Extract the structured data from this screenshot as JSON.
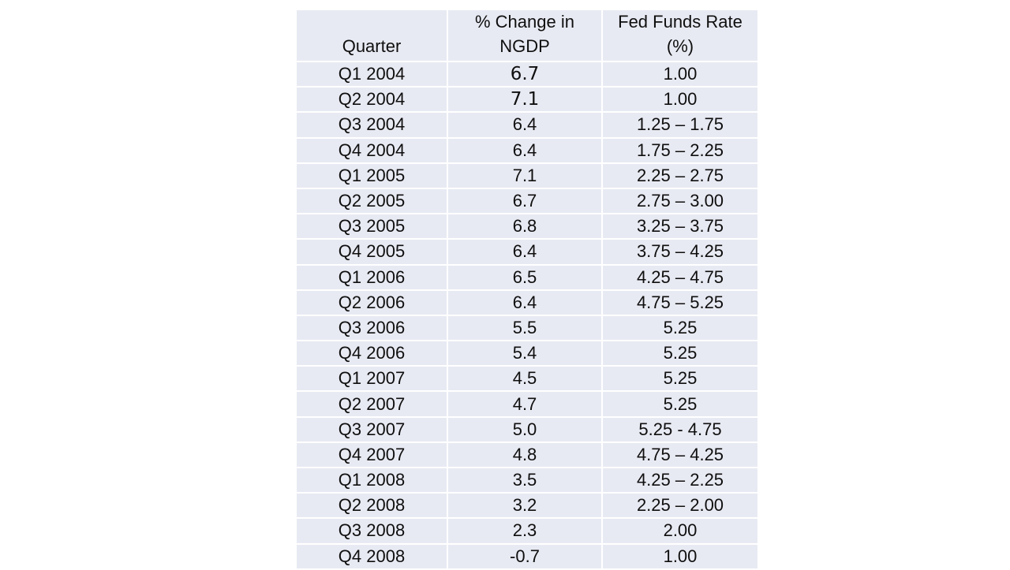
{
  "page": {
    "background": "#FFFFFF"
  },
  "table": {
    "style": {
      "cell_fill": "#E8EAF3",
      "grid_line": "#FFFFFF",
      "text_color": "#0F0F0F"
    },
    "header": [
      {
        "lines": [
          "Quarter"
        ]
      },
      {
        "lines": [
          "% Change in",
          "NGDP"
        ]
      },
      {
        "lines": [
          "Fed Funds Rate",
          "(%)"
        ]
      }
    ],
    "rows": [
      [
        "Q1 2004",
        "6.7",
        "1.00"
      ],
      [
        "Q2 2004",
        "7.1",
        "1.00"
      ],
      [
        "Q3 2004",
        "6.4",
        "1.25 – 1.75"
      ],
      [
        "Q4 2004",
        "6.4",
        "1.75 – 2.25"
      ],
      [
        "Q1 2005",
        "7.1",
        "2.25 – 2.75"
      ],
      [
        "Q2 2005",
        "6.7",
        "2.75 – 3.00"
      ],
      [
        "Q3 2005",
        "6.8",
        "3.25 – 3.75"
      ],
      [
        "Q4 2005",
        "6.4",
        "3.75 – 4.25"
      ],
      [
        "Q1 2006",
        "6.5",
        "4.25 – 4.75"
      ],
      [
        "Q2 2006",
        "6.4",
        "4.75 – 5.25"
      ],
      [
        "Q3 2006",
        "5.5",
        "5.25"
      ],
      [
        "Q4 2006",
        "5.4",
        "5.25"
      ],
      [
        "Q1 2007",
        "4.5",
        "5.25"
      ],
      [
        "Q2 2007",
        "4.7",
        "5.25"
      ],
      [
        "Q3 2007",
        "5.0",
        "5.25 - 4.75"
      ],
      [
        "Q4 2007",
        "4.8",
        "4.75 – 4.25"
      ],
      [
        "Q1 2008",
        "3.5",
        "4.25 – 2.25"
      ],
      [
        "Q2 2008",
        "3.2",
        "2.25 – 2.00"
      ],
      [
        "Q3 2008",
        "2.3",
        "2.00"
      ],
      [
        "Q4 2008",
        "-0.7",
        "1.00"
      ]
    ]
  },
  "chart_data": {
    "type": "table",
    "title": "",
    "columns": [
      "Quarter",
      "% Change in NGDP",
      "Fed Funds Rate (%)"
    ],
    "quarters": [
      "Q1 2004",
      "Q2 2004",
      "Q3 2004",
      "Q4 2004",
      "Q1 2005",
      "Q2 2005",
      "Q3 2005",
      "Q4 2005",
      "Q1 2006",
      "Q2 2006",
      "Q3 2006",
      "Q4 2006",
      "Q1 2007",
      "Q2 2007",
      "Q3 2007",
      "Q4 2007",
      "Q1 2008",
      "Q2 2008",
      "Q3 2008",
      "Q4 2008"
    ],
    "ngdp_pct_change": [
      6.7,
      7.1,
      6.4,
      6.4,
      7.1,
      6.7,
      6.8,
      6.4,
      6.5,
      6.4,
      5.5,
      5.4,
      4.5,
      4.7,
      5.0,
      4.8,
      3.5,
      3.2,
      2.3,
      -0.7
    ],
    "fed_funds_rate": [
      "1.00",
      "1.00",
      "1.25 – 1.75",
      "1.75 – 2.25",
      "2.25 – 2.75",
      "2.75 – 3.00",
      "3.25 – 3.75",
      "3.75 – 4.25",
      "4.25 – 4.75",
      "4.75 – 5.25",
      "5.25",
      "5.25",
      "5.25",
      "5.25",
      "5.25 - 4.75",
      "4.75 – 4.25",
      "4.25 – 2.25",
      "2.25 – 2.00",
      "2.00",
      "1.00"
    ]
  }
}
